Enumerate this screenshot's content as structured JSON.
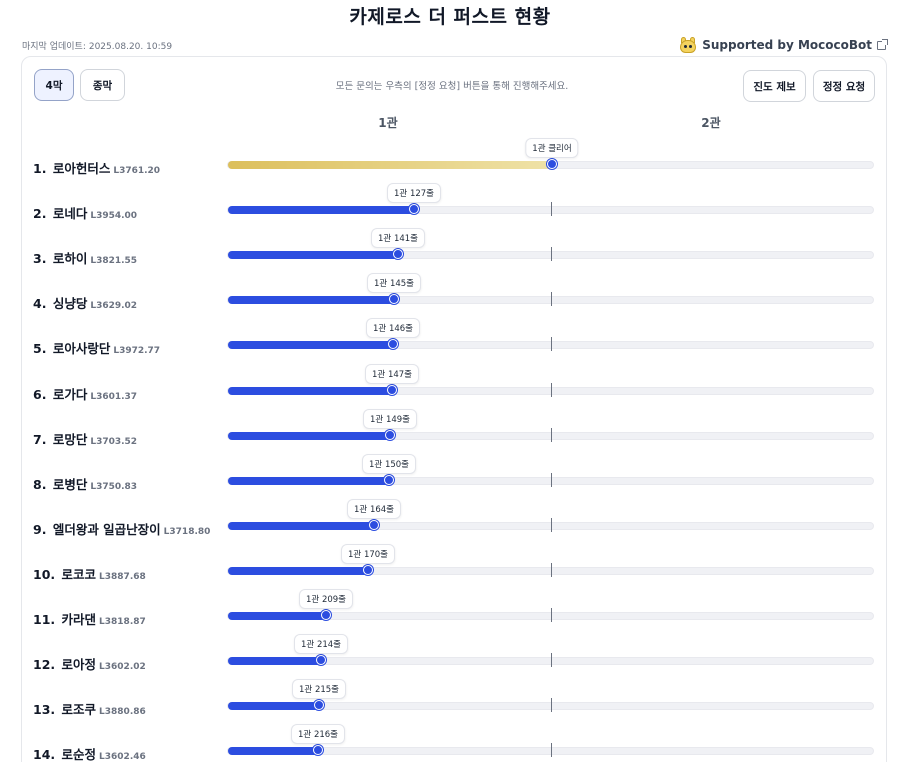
{
  "page": {
    "title": "카제로스 더 퍼스트 현황",
    "last_updated_label": "마지막 업데이트:",
    "last_updated_value": "2025.08.20. 10:59",
    "supported_by": "Supported by MococoBot"
  },
  "toolbar": {
    "tabs": [
      {
        "label": "4막",
        "active": true
      },
      {
        "label": "종막",
        "active": false
      }
    ],
    "notice": "모든 문의는 우측의 [정정 요청] 버튼을 통해 진행해주세요.",
    "progress_report_label": "진도 제보",
    "correction_request_label": "정정 요청"
  },
  "columns": [
    "1관",
    "2관"
  ],
  "colors": {
    "accent": "#2c4de0",
    "cleared": "#dcbf5c",
    "track": "#f0f1f5"
  },
  "rows": [
    {
      "rank": "1.",
      "name": "로아헌터스",
      "level": "L3761.20",
      "status": "1관 클리어",
      "progress": 0.5,
      "cleared": true
    },
    {
      "rank": "2.",
      "name": "로네다",
      "level": "L3954.00",
      "status": "1관 127줄",
      "progress": 0.287,
      "cleared": false
    },
    {
      "rank": "3.",
      "name": "로하이",
      "level": "L3821.55",
      "status": "1관 141줄",
      "progress": 0.263,
      "cleared": false
    },
    {
      "rank": "4.",
      "name": "싱냥당",
      "level": "L3629.02",
      "status": "1관 145줄",
      "progress": 0.257,
      "cleared": false
    },
    {
      "rank": "5.",
      "name": "로아사랑단",
      "level": "L3972.77",
      "status": "1관 146줄",
      "progress": 0.255,
      "cleared": false
    },
    {
      "rank": "6.",
      "name": "로가다",
      "level": "L3601.37",
      "status": "1관 147줄",
      "progress": 0.254,
      "cleared": false
    },
    {
      "rank": "7.",
      "name": "로망단",
      "level": "L3703.52",
      "status": "1관 149줄",
      "progress": 0.25,
      "cleared": false
    },
    {
      "rank": "8.",
      "name": "로병단",
      "level": "L3750.83",
      "status": "1관 150줄",
      "progress": 0.249,
      "cleared": false
    },
    {
      "rank": "9.",
      "name": "엘더왕과 일곱난장이",
      "level": "L3718.80",
      "status": "1관 164줄",
      "progress": 0.226,
      "cleared": false
    },
    {
      "rank": "10.",
      "name": "로코코",
      "level": "L3887.68",
      "status": "1관 170줄",
      "progress": 0.216,
      "cleared": false
    },
    {
      "rank": "11.",
      "name": "카라댄",
      "level": "L3818.87",
      "status": "1관 209줄",
      "progress": 0.151,
      "cleared": false
    },
    {
      "rank": "12.",
      "name": "로아정",
      "level": "L3602.02",
      "status": "1관 214줄",
      "progress": 0.143,
      "cleared": false
    },
    {
      "rank": "13.",
      "name": "로조쿠",
      "level": "L3880.86",
      "status": "1관 215줄",
      "progress": 0.141,
      "cleared": false
    },
    {
      "rank": "14.",
      "name": "로순정",
      "level": "L3602.46",
      "status": "1관 216줄",
      "progress": 0.139,
      "cleared": false
    }
  ]
}
